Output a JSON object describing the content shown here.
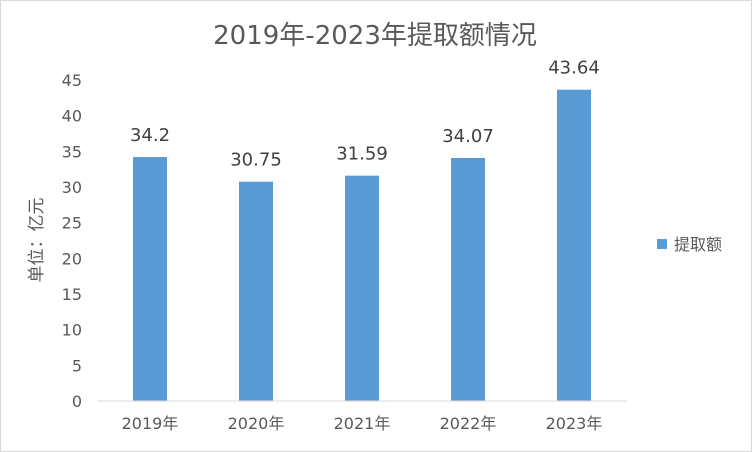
{
  "chart_data": {
    "type": "bar",
    "title": "2019年-2023年提取额情况",
    "xlabel": "",
    "ylabel": "单位：亿元",
    "categories": [
      "2019年",
      "2020年",
      "2021年",
      "2022年",
      "2023年"
    ],
    "series": [
      {
        "name": "提取额",
        "values": [
          34.2,
          30.75,
          31.59,
          34.07,
          43.64
        ],
        "labels": [
          "34.2",
          "30.75",
          "31.59",
          "34.07",
          "43.64"
        ],
        "color": "#5b9bd5"
      }
    ],
    "ylim": [
      0,
      45
    ],
    "yticks": [
      0,
      5,
      10,
      15,
      20,
      25,
      30,
      35,
      40,
      45
    ],
    "grid": false,
    "legend_position": "right"
  }
}
